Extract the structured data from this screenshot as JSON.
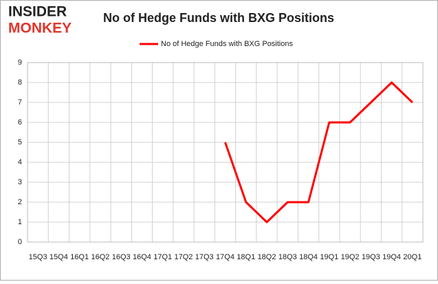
{
  "logo": {
    "line1": "INSIDER",
    "line2": "MONKEY"
  },
  "chart_data": {
    "type": "line",
    "title": "No of Hedge Funds with BXG Positions",
    "categories": [
      "15Q3",
      "15Q4",
      "16Q1",
      "16Q2",
      "16Q3",
      "16Q4",
      "17Q1",
      "17Q2",
      "17Q3",
      "17Q4",
      "18Q1",
      "18Q2",
      "18Q3",
      "18Q4",
      "19Q1",
      "19Q2",
      "19Q3",
      "19Q4",
      "20Q1"
    ],
    "series": [
      {
        "name": "No of Hedge Funds with BXG Positions",
        "color": "#ff0000",
        "values": [
          null,
          null,
          null,
          null,
          null,
          null,
          null,
          null,
          null,
          5,
          2,
          1,
          2,
          2,
          6,
          6,
          7,
          8,
          7
        ]
      }
    ],
    "ylim": [
      0,
      9
    ],
    "yticks": [
      0,
      1,
      2,
      3,
      4,
      5,
      6,
      7,
      8,
      9
    ],
    "grid": true,
    "legend": "top"
  }
}
